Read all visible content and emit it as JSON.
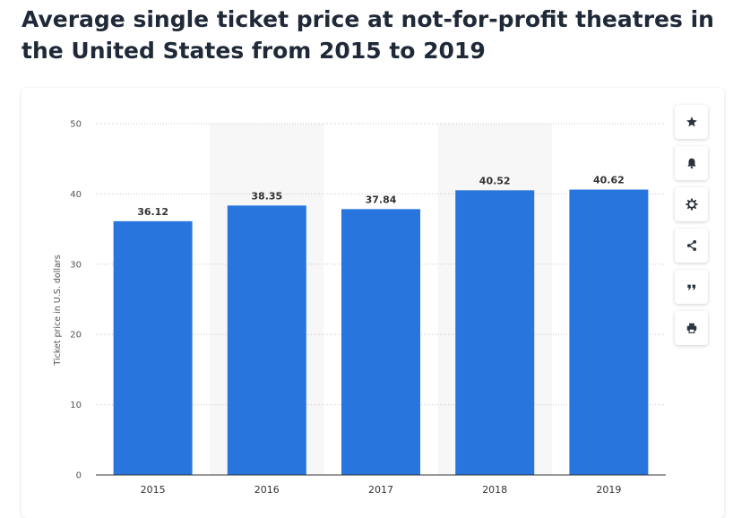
{
  "page": {
    "title": "Average single ticket price at not-for-profit theatres in the United States from 2015 to 2019"
  },
  "toolbar": {
    "buttons": [
      {
        "icon": "star-icon"
      },
      {
        "icon": "bell-icon"
      },
      {
        "icon": "gear-icon"
      },
      {
        "icon": "share-icon"
      },
      {
        "icon": "quote-icon"
      },
      {
        "icon": "print-icon"
      }
    ]
  },
  "colors": {
    "bar": "#2876dd",
    "band": "#f7f7f7"
  },
  "chart_data": {
    "type": "bar",
    "categories": [
      "2015",
      "2016",
      "2017",
      "2018",
      "2019"
    ],
    "values": [
      36.12,
      38.35,
      37.84,
      40.52,
      40.62
    ],
    "value_labels": [
      "36.12",
      "38.35",
      "37.84",
      "40.52",
      "40.62"
    ],
    "xlabel": "",
    "ylabel": "Ticket price in U.S. dollars",
    "ylim": [
      0,
      50
    ],
    "yticks": [
      0,
      10,
      20,
      30,
      40,
      50
    ],
    "grid": true,
    "legend": "none"
  }
}
